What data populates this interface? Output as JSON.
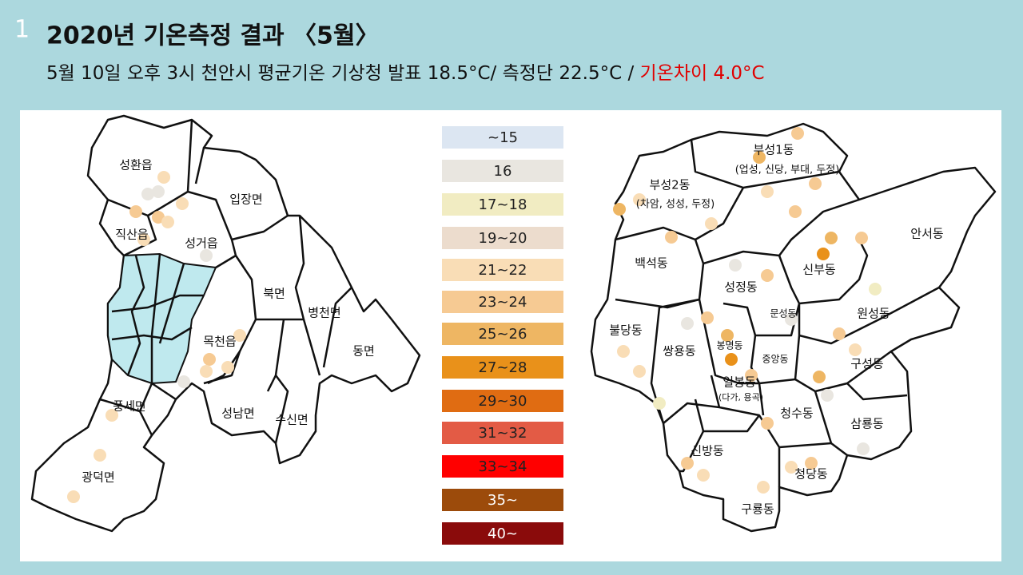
{
  "slide_number": "1",
  "title": "2020년 기온측정 결과 〈5월〉",
  "subtitle": {
    "main": "5월 10일 오후 3시 천안시 평균기온 기상청 발표 18.5°C/ 측정단 22.5°C  / ",
    "highlight": "기온차이 4.0°C"
  },
  "legend": {
    "items": [
      {
        "label": "~15",
        "color": "#dce6f2"
      },
      {
        "label": "16",
        "color": "#e9e6e0"
      },
      {
        "label": "17~18",
        "color": "#f1ecc2"
      },
      {
        "label": "19~20",
        "color": "#ecdccd"
      },
      {
        "label": "21~22",
        "color": "#f9ddb6"
      },
      {
        "label": "23~24",
        "color": "#f6ca93"
      },
      {
        "label": "25~26",
        "color": "#eeb663"
      },
      {
        "label": "27~28",
        "color": "#e9911a"
      },
      {
        "label": "29~30",
        "color": "#e06c12"
      },
      {
        "label": "31~32",
        "color": "#e35b45"
      },
      {
        "label": "33~34",
        "color": "#ff0000"
      },
      {
        "label": "35~",
        "color": "#9c4b0b"
      },
      {
        "label": "40~",
        "color": "#8a0b0b"
      }
    ]
  },
  "left_map": {
    "labels": [
      "성환읍",
      "입장면",
      "직산읍",
      "성거읍",
      "북면",
      "병천면",
      "목천읍",
      "동면",
      "풍세면",
      "성남면",
      "수신면",
      "광덕면"
    ]
  },
  "right_map": {
    "labels": [
      "부성1동",
      "(업성, 신당, 부대, 두정)",
      "부성2동",
      "(차암, 성성, 두정)",
      "안서동",
      "백석동",
      "신부동",
      "성정동",
      "문성동",
      "원성동",
      "불당동",
      "봉명동",
      "쌍용동",
      "중앙동",
      "구성동",
      "일봉동",
      "(다가, 용곡)",
      "청수동",
      "삼룡동",
      "신방동",
      "청당동",
      "구룡동"
    ]
  }
}
